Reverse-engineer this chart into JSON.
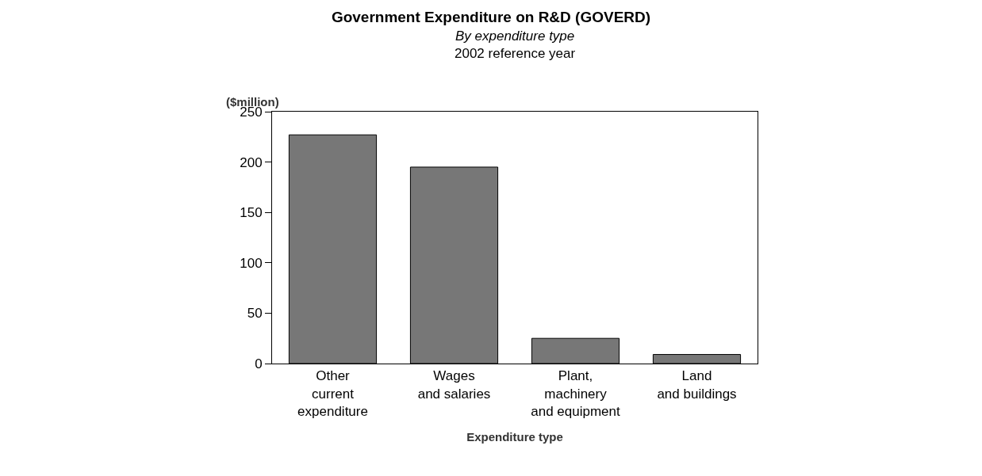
{
  "chart_data": {
    "type": "bar",
    "title": "Government Expenditure on R&D (GOVERD)",
    "subtitle": "By expenditure type",
    "annotations": [
      "2002 reference year"
    ],
    "xlabel": "Expenditure type",
    "ylabel": "($million)",
    "categories": [
      "Other\ncurrent\nexpenditure",
      "Wages\nand salaries",
      "Plant,\nmachinery\nand equipment",
      "Land\nand buildings"
    ],
    "values": [
      227,
      195,
      25,
      9
    ],
    "color": "#777777",
    "ylim": [
      0,
      250
    ],
    "yticks": [
      0,
      50,
      100,
      150,
      200,
      250
    ]
  }
}
